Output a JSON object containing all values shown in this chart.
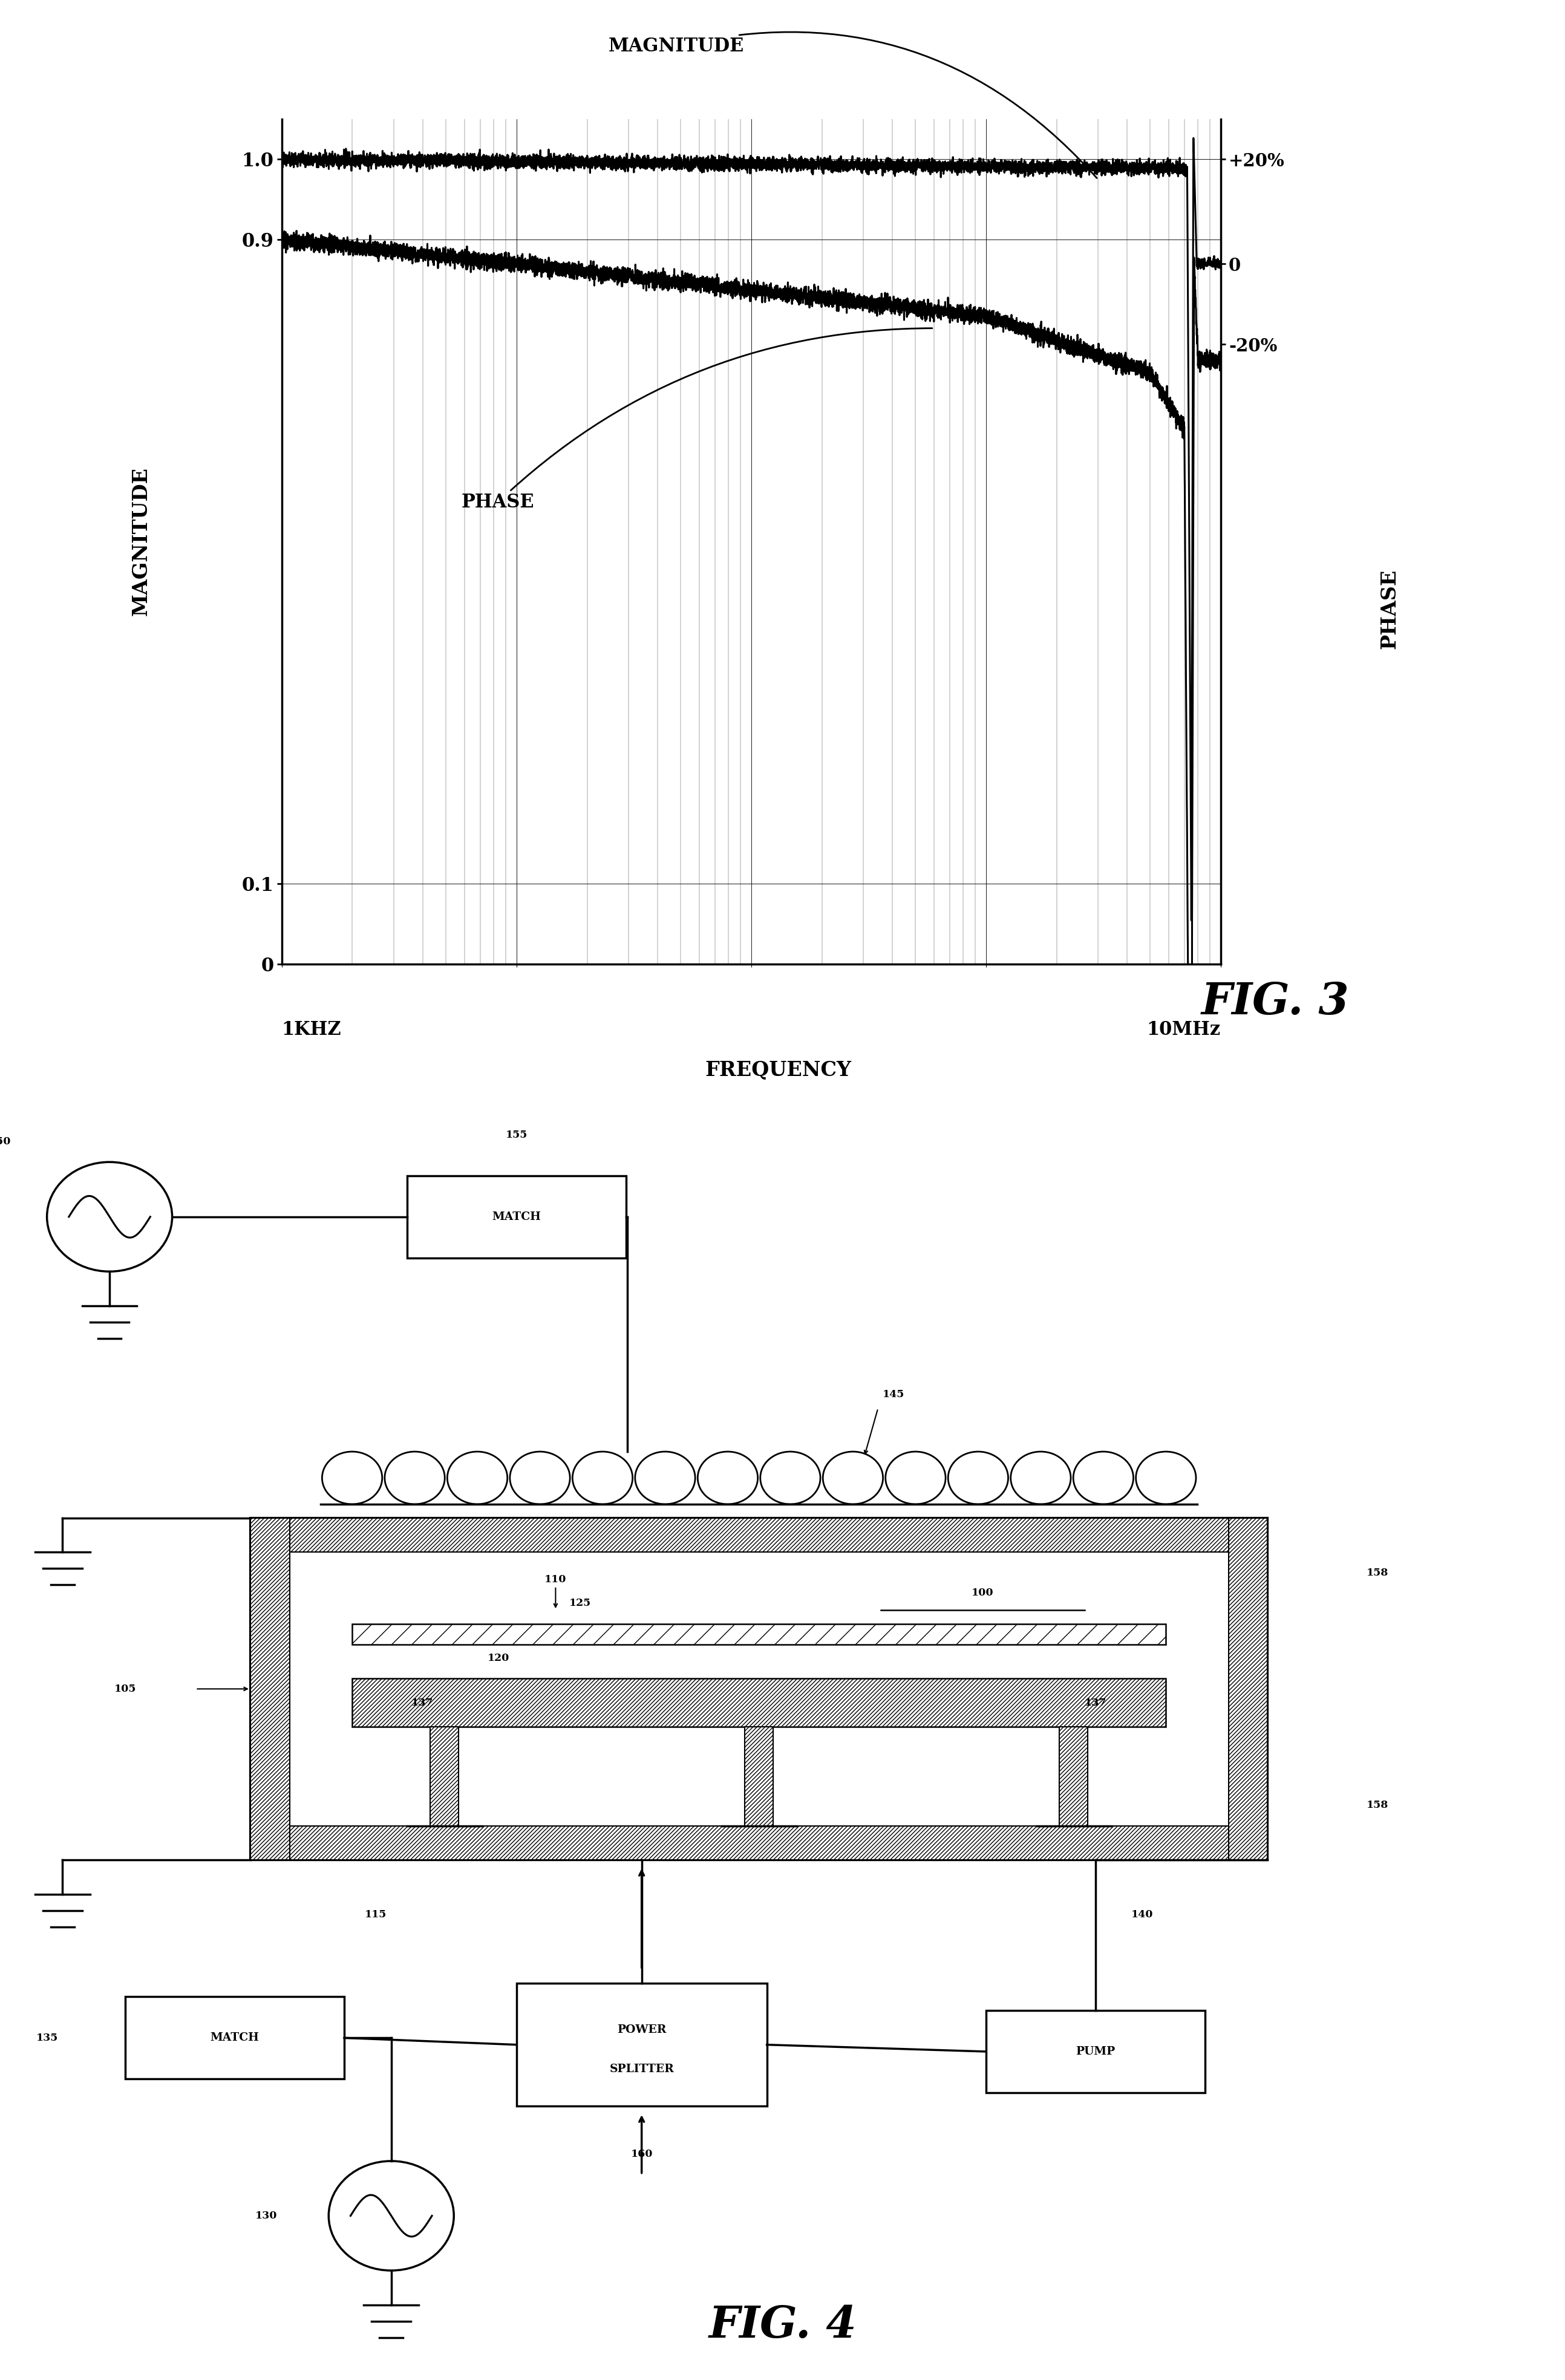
{
  "fig3_title": "FIG. 3",
  "fig4_title": "FIG. 4",
  "fig3_xlabel": "FREQUENCY",
  "fig3_ylabel_left": "MAGNITUDE",
  "fig3_ylabel_right": "PHASE",
  "fig3_x_label_left": "1KHZ",
  "fig3_x_label_right": "10MHz",
  "fig3_yticks": [
    "0",
    "0.1",
    "0.9",
    "1.0"
  ],
  "fig3_right_labels": [
    "+20%",
    "0",
    "-20%"
  ],
  "background_color": "#ffffff",
  "lw": 2.0
}
